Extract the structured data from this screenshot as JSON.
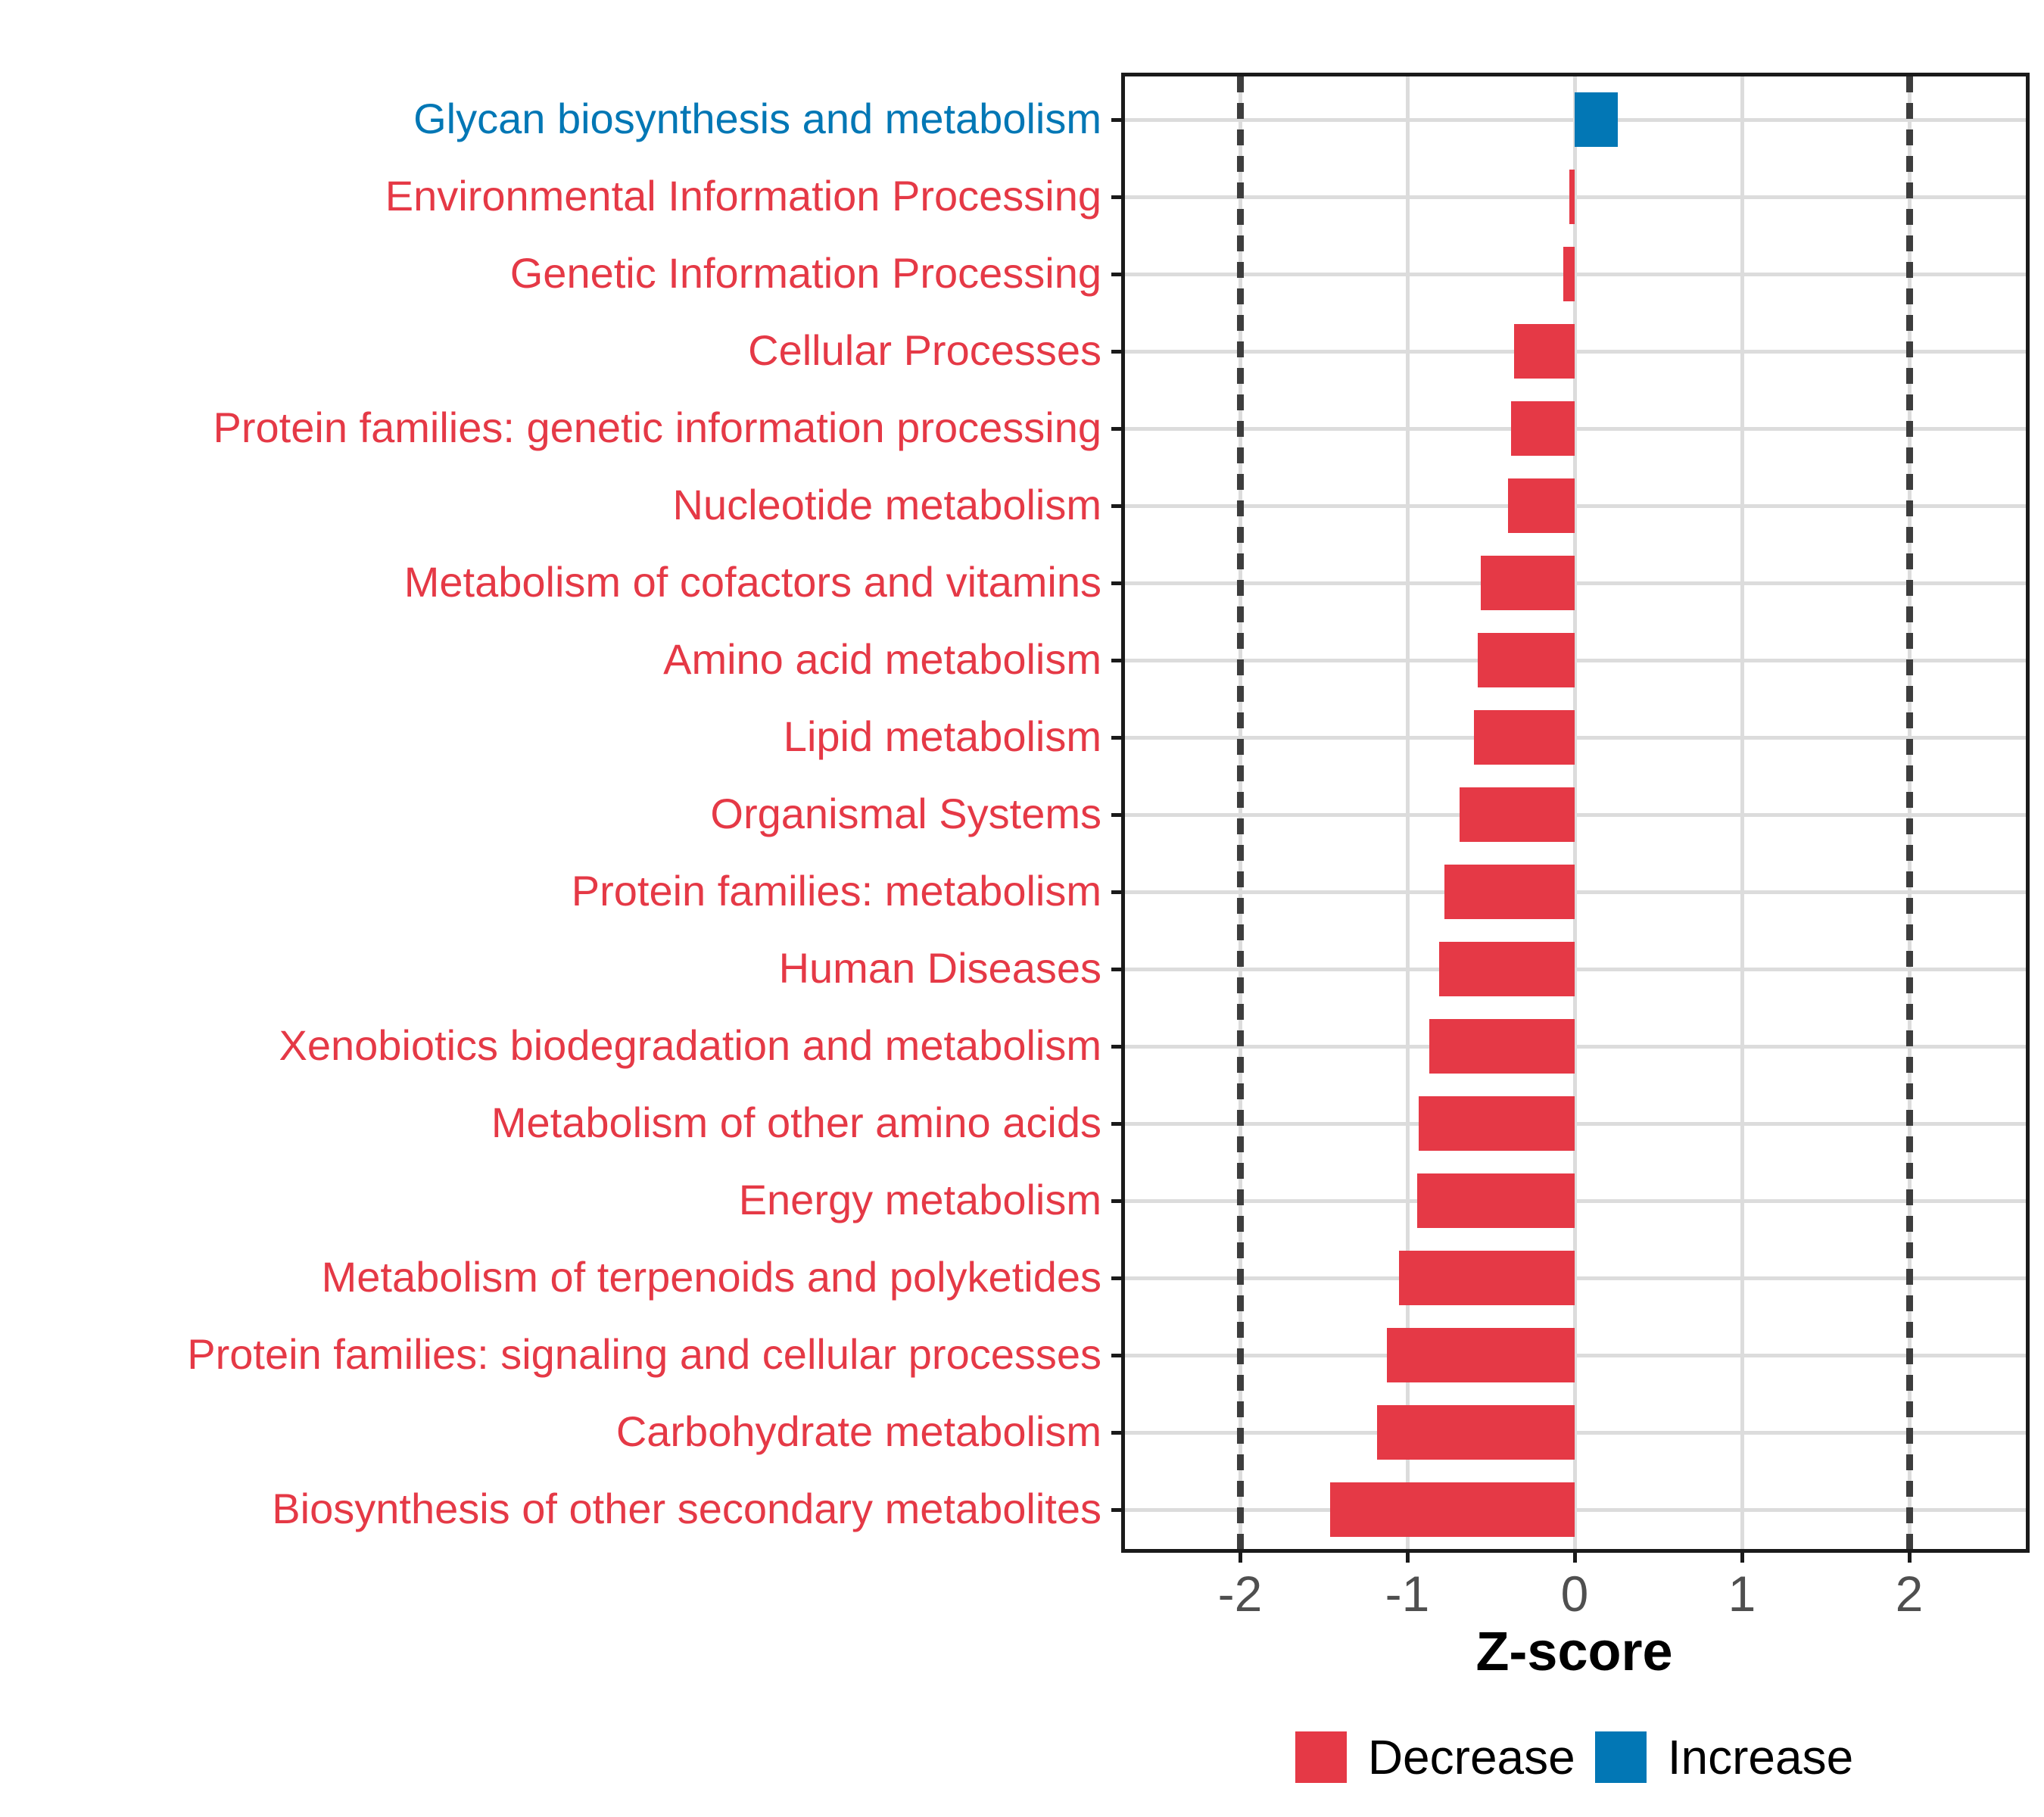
{
  "chart_data": {
    "type": "bar",
    "orientation": "horizontal",
    "title": "",
    "xlabel": "Z-score",
    "ylabel": "",
    "grid": true,
    "legend_position": "bottom",
    "xlim": [
      -2.7,
      2.7
    ],
    "xticks": [
      -2,
      -1,
      0,
      1,
      2
    ],
    "xtick_labels": [
      "-2",
      "-1",
      "0",
      "1",
      "2"
    ],
    "reference_lines": [
      -2,
      2
    ],
    "categories": [
      "Glycan biosynthesis and metabolism",
      "Environmental Information Processing",
      "Genetic Information Processing",
      "Cellular Processes",
      "Protein families: genetic information processing",
      "Nucleotide metabolism",
      "Metabolism of cofactors and vitamins",
      "Amino acid metabolism",
      "Lipid metabolism",
      "Organismal Systems",
      "Protein families: metabolism",
      "Human Diseases",
      "Xenobiotics biodegradation and metabolism",
      "Metabolism of other amino acids",
      "Energy metabolism",
      "Metabolism of terpenoids and polyketides",
      "Protein families: signaling and cellular processes",
      "Carbohydrate metabolism",
      "Biosynthesis of other secondary metabolites"
    ],
    "values": [
      0.26,
      -0.03,
      -0.07,
      -0.36,
      -0.38,
      -0.4,
      -0.56,
      -0.58,
      -0.6,
      -0.69,
      -0.78,
      -0.81,
      -0.87,
      -0.93,
      -0.94,
      -1.05,
      -1.12,
      -1.18,
      -1.46
    ],
    "directions": [
      "increase",
      "decrease",
      "decrease",
      "decrease",
      "decrease",
      "decrease",
      "decrease",
      "decrease",
      "decrease",
      "decrease",
      "decrease",
      "decrease",
      "decrease",
      "decrease",
      "decrease",
      "decrease",
      "decrease",
      "decrease",
      "decrease"
    ],
    "colors": {
      "decrease": "#E53946",
      "increase": "#0277B5"
    },
    "axis_text_color": "#4f4f4f",
    "legend": [
      {
        "label": "Decrease",
        "color": "#E53946"
      },
      {
        "label": "Increase",
        "color": "#0277B5"
      }
    ]
  }
}
